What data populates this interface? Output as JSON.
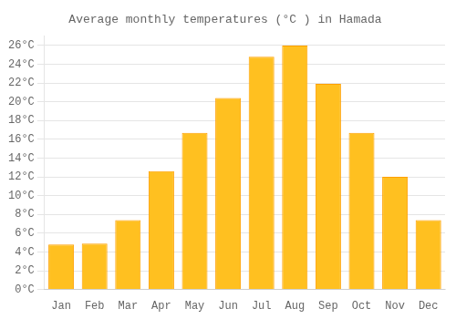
{
  "chart_data": {
    "type": "bar",
    "title": "Average monthly temperatures (°C ) in Hamada",
    "categories": [
      "Jan",
      "Feb",
      "Mar",
      "Apr",
      "May",
      "Jun",
      "Jul",
      "Aug",
      "Sep",
      "Oct",
      "Nov",
      "Dec"
    ],
    "values": [
      4.8,
      4.9,
      7.4,
      12.6,
      16.7,
      20.4,
      24.8,
      26.0,
      21.9,
      16.7,
      12.0,
      7.4
    ],
    "color": "#FFC020",
    "ylim": [
      0,
      27
    ],
    "yticks": [
      {
        "value": 0,
        "label": "0°C"
      },
      {
        "value": 2,
        "label": "2°C"
      },
      {
        "value": 4,
        "label": "4°C"
      },
      {
        "value": 6,
        "label": "6°C"
      },
      {
        "value": 8,
        "label": "8°C"
      },
      {
        "value": 10,
        "label": "10°C"
      },
      {
        "value": 12,
        "label": "12°C"
      },
      {
        "value": 14,
        "label": "14°C"
      },
      {
        "value": 16,
        "label": "16°C"
      },
      {
        "value": 18,
        "label": "18°C"
      },
      {
        "value": 20,
        "label": "20°C"
      },
      {
        "value": 22,
        "label": "22°C"
      },
      {
        "value": 24,
        "label": "24°C"
      },
      {
        "value": 26,
        "label": "26°C"
      }
    ],
    "grid": true
  }
}
